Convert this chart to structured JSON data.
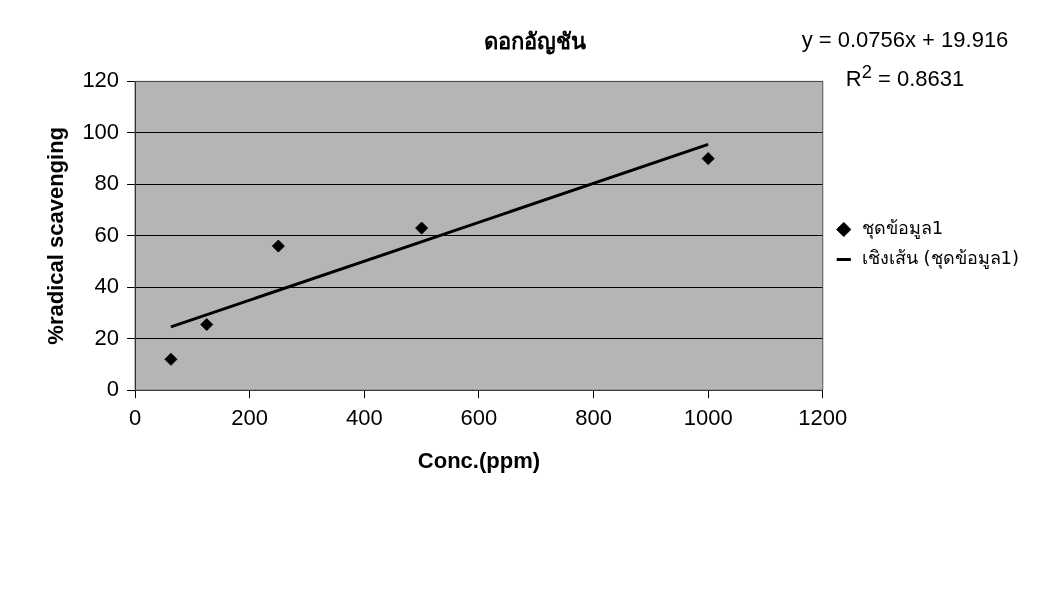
{
  "chart_data": {
    "type": "scatter",
    "title": "ดอกอัญชัน",
    "xlabel": "Conc.(ppm)",
    "ylabel": "%radical scavenging",
    "x": [
      62.5,
      125,
      250,
      500,
      1000
    ],
    "series": [
      {
        "name": "ชุดข้อมูล1",
        "color": "#000000",
        "values": [
          12,
          25.5,
          56,
          63,
          90
        ],
        "marker": "diamond"
      },
      {
        "name": "เชิงเส้น (ชุดข้อมูล1)",
        "type": "line",
        "color": "#000000",
        "x": [
          62.5,
          1000
        ],
        "values": [
          24.6,
          95.5
        ],
        "marker": "none",
        "line_style": "solid"
      }
    ],
    "xlim": [
      0,
      1200
    ],
    "xticks": [
      0,
      200,
      400,
      600,
      800,
      1000,
      1200
    ],
    "ylim": [
      0,
      120
    ],
    "yticks": [
      0,
      20,
      40,
      60,
      80,
      100,
      120
    ],
    "grid": "y",
    "legend": "right",
    "annotations": [
      "y = 0.0756x + 19.916",
      "R$^{2}$ = 0.8631"
    ]
  }
}
